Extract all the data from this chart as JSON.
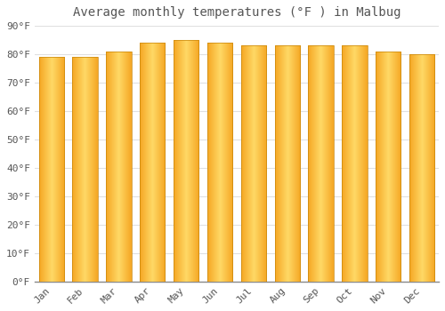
{
  "title": "Average monthly temperatures (°F ) in Malbug",
  "months": [
    "Jan",
    "Feb",
    "Mar",
    "Apr",
    "May",
    "Jun",
    "Jul",
    "Aug",
    "Sep",
    "Oct",
    "Nov",
    "Dec"
  ],
  "values": [
    79,
    79,
    81,
    84,
    85,
    84,
    83,
    83,
    83,
    83,
    81,
    80
  ],
  "bar_color_center": "#FFD966",
  "bar_color_edge": "#F5A623",
  "bar_edge_color": "#C8860A",
  "background_color": "#FFFFFF",
  "plot_bg_color": "#FFFFFF",
  "grid_color": "#E0E0E0",
  "text_color": "#555555",
  "ylim": [
    0,
    90
  ],
  "yticks": [
    0,
    10,
    20,
    30,
    40,
    50,
    60,
    70,
    80,
    90
  ],
  "title_fontsize": 10,
  "tick_fontsize": 8,
  "font_family": "monospace",
  "bar_width": 0.75
}
